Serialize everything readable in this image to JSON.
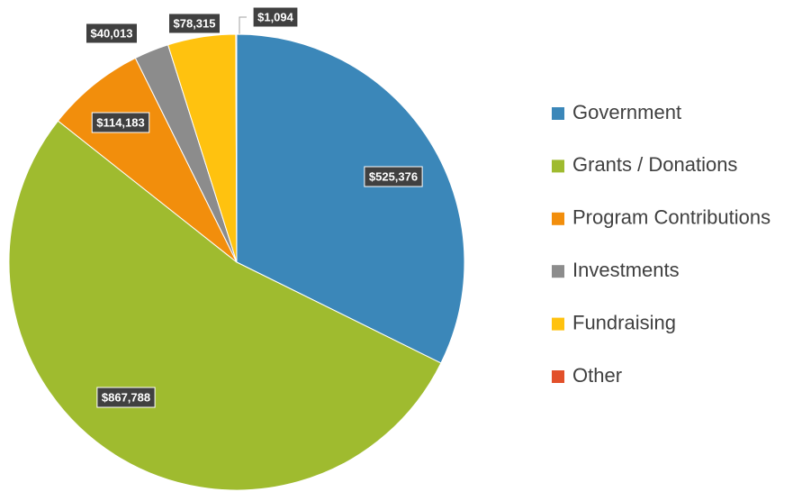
{
  "chart_data": {
    "type": "pie",
    "categories": [
      "Government",
      "Grants / Donations",
      "Program Contributions",
      "Investments",
      "Fundraising",
      "Other"
    ],
    "values": [
      525376,
      867788,
      114183,
      40013,
      78315,
      1094
    ],
    "value_labels": [
      "$525,376",
      "$867,788",
      "$114,183",
      "$40,013",
      "$78,315",
      "$1,094"
    ],
    "colors": [
      "#3b87b9",
      "#9fbb2f",
      "#f28e0c",
      "#8c8c8c",
      "#ffc20f",
      "#e2502a"
    ],
    "legend": "right"
  }
}
